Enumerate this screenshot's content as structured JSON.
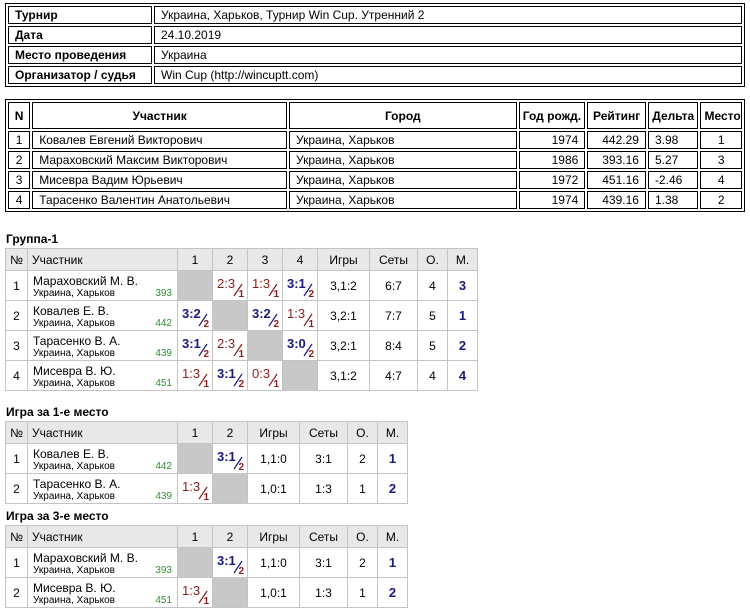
{
  "info": {
    "rows": [
      [
        "Турнир",
        "Украина, Харьков, Турнир Win Cup. Утренний 2"
      ],
      [
        "Дата",
        "24.10.2019"
      ],
      [
        "Место проведения",
        "Украина"
      ],
      [
        "Организатор / судья",
        "Win Cup (http://wincuptt.com)"
      ]
    ]
  },
  "participants": {
    "headers": [
      "N",
      "Участник",
      "Город",
      "Год рожд.",
      "Рейтинг",
      "Дельта",
      "Место"
    ],
    "rows": [
      [
        "1",
        "Ковалев Евгений Викторович",
        "Украина, Харьков",
        "1974",
        "442.29",
        "3.98",
        "1"
      ],
      [
        "2",
        "Мараховский Максим Викторович",
        "Украина, Харьков",
        "1986",
        "393.16",
        "5.27",
        "3"
      ],
      [
        "3",
        "Мисевра Вадим Юрьевич",
        "Украина, Харьков",
        "1972",
        "451.16",
        "-2.46",
        "4"
      ],
      [
        "4",
        "Тарасенко Валентин Анатольевич",
        "Украина, Харьков",
        "1974",
        "439.16",
        "1.38",
        "2"
      ]
    ]
  },
  "groups": [
    {
      "title": "Группа-1",
      "headers": [
        "№",
        "Участник",
        "1",
        "2",
        "3",
        "4",
        "Игры",
        "Сеты",
        "О.",
        "М."
      ],
      "rows": [
        {
          "n": "1",
          "name": "Мараховский М. В.",
          "city": "Украина, Харьков",
          "rating": "393",
          "results": [
            null,
            {
              "score": "2:3",
              "points": "1"
            },
            {
              "score": "1:3",
              "points": "1"
            },
            {
              "score": "3:1",
              "points": "2"
            }
          ],
          "games": "3,1:2",
          "sets": "6:7",
          "o": "4",
          "place": "3"
        },
        {
          "n": "2",
          "name": "Ковалев Е. В.",
          "city": "Украина, Харьков",
          "rating": "442",
          "results": [
            {
              "score": "3:2",
              "points": "2"
            },
            null,
            {
              "score": "3:2",
              "points": "2"
            },
            {
              "score": "1:3",
              "points": "1"
            }
          ],
          "games": "3,2:1",
          "sets": "7:7",
          "o": "5",
          "place": "1"
        },
        {
          "n": "3",
          "name": "Тарасенко В. А.",
          "city": "Украина, Харьков",
          "rating": "439",
          "results": [
            {
              "score": "3:1",
              "points": "2"
            },
            {
              "score": "2:3",
              "points": "1"
            },
            null,
            {
              "score": "3:0",
              "points": "2"
            }
          ],
          "games": "3,2:1",
          "sets": "8:4",
          "o": "5",
          "place": "2"
        },
        {
          "n": "4",
          "name": "Мисевра В. Ю.",
          "city": "Украина, Харьков",
          "rating": "451",
          "results": [
            {
              "score": "1:3",
              "points": "1"
            },
            {
              "score": "3:1",
              "points": "2"
            },
            {
              "score": "0:3",
              "points": "1"
            },
            null
          ],
          "games": "3,1:2",
          "sets": "4:7",
          "o": "4",
          "place": "4"
        }
      ]
    },
    {
      "title": "Игра за 1-е место",
      "headers": [
        "№",
        "Участник",
        "1",
        "2",
        "Игры",
        "Сеты",
        "О.",
        "М."
      ],
      "rows": [
        {
          "n": "1",
          "name": "Ковалев Е. В.",
          "city": "Украина, Харьков",
          "rating": "442",
          "results": [
            null,
            {
              "score": "3:1",
              "points": "2"
            }
          ],
          "games": "1,1:0",
          "sets": "3:1",
          "o": "2",
          "place": "1"
        },
        {
          "n": "2",
          "name": "Тарасенко В. А.",
          "city": "Украина, Харьков",
          "rating": "439",
          "results": [
            {
              "score": "1:3",
              "points": "1"
            },
            null
          ],
          "games": "1,0:1",
          "sets": "1:3",
          "o": "1",
          "place": "2"
        }
      ]
    },
    {
      "title": "Игра за 3-е место",
      "headers": [
        "№",
        "Участник",
        "1",
        "2",
        "Игры",
        "Сеты",
        "О.",
        "М."
      ],
      "rows": [
        {
          "n": "1",
          "name": "Мараховский М. В.",
          "city": "Украина, Харьков",
          "rating": "393",
          "results": [
            null,
            {
              "score": "3:1",
              "points": "2"
            }
          ],
          "games": "1,1:0",
          "sets": "3:1",
          "o": "2",
          "place": "1"
        },
        {
          "n": "2",
          "name": "Мисевра В. Ю.",
          "city": "Украина, Харьков",
          "rating": "451",
          "results": [
            {
              "score": "1:3",
              "points": "1"
            },
            null
          ],
          "games": "1,0:1",
          "sets": "1:3",
          "o": "1",
          "place": "2"
        }
      ]
    }
  ]
}
